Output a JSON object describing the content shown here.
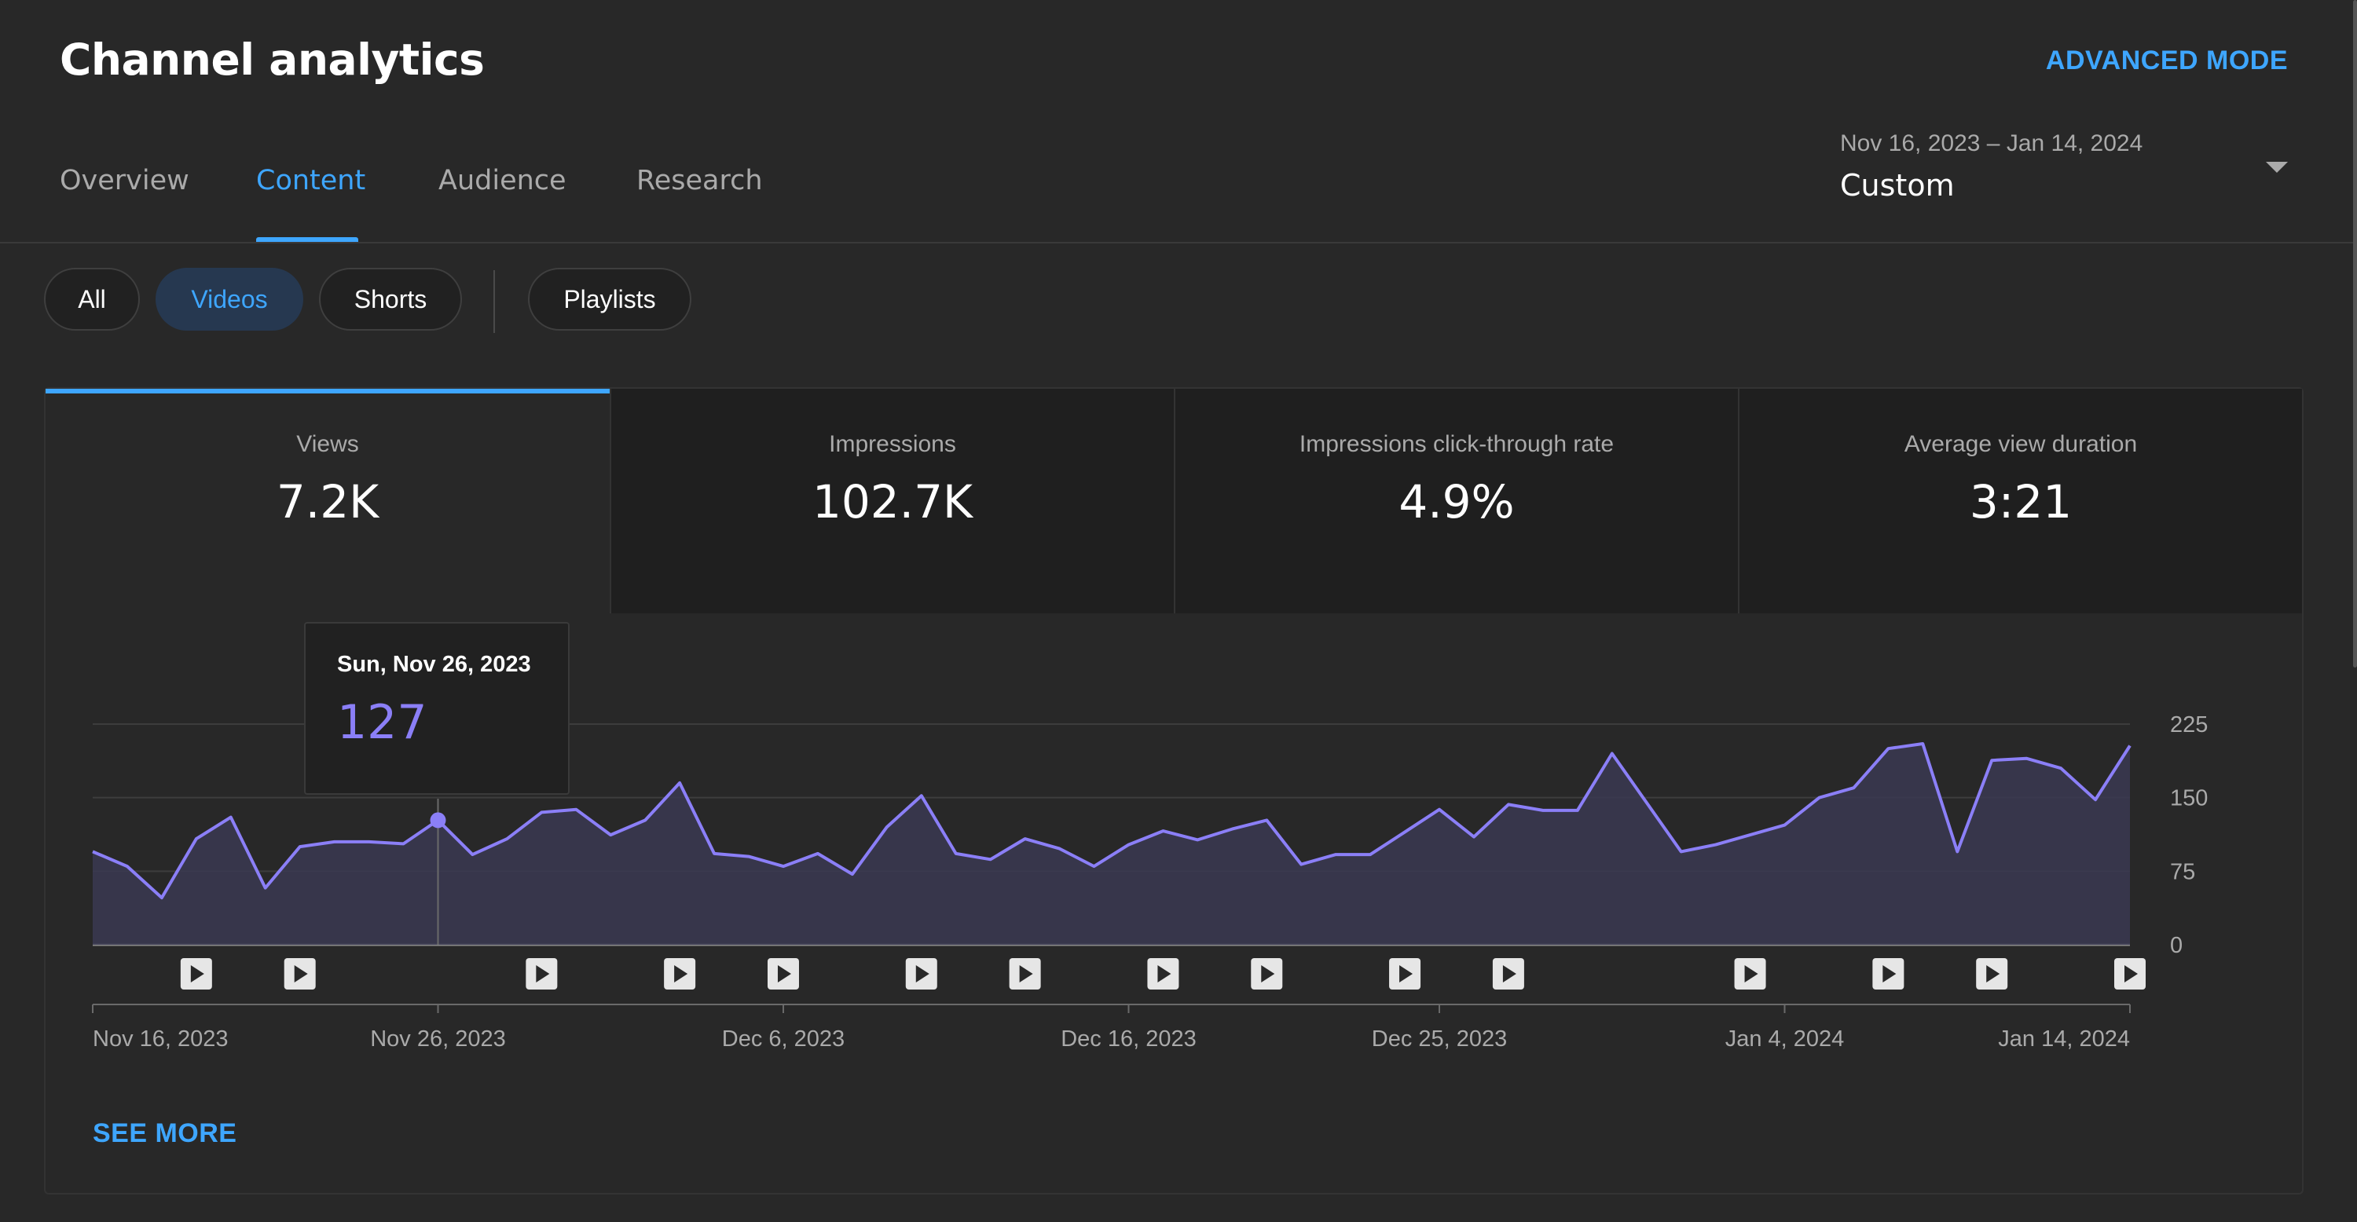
{
  "header": {
    "title": "Channel analytics",
    "advanced_mode_label": "ADVANCED MODE"
  },
  "tabs": [
    {
      "label": "Overview",
      "active": false
    },
    {
      "label": "Content",
      "active": true
    },
    {
      "label": "Audience",
      "active": false
    },
    {
      "label": "Research",
      "active": false
    }
  ],
  "date_range": {
    "range_text": "Nov 16, 2023 – Jan 14, 2024",
    "preset_label": "Custom"
  },
  "filters": {
    "chips": [
      {
        "label": "All",
        "active": false
      },
      {
        "label": "Videos",
        "active": true
      },
      {
        "label": "Shorts",
        "active": false
      },
      {
        "label": "Playlists",
        "active": false
      }
    ]
  },
  "metrics": [
    {
      "label": "Views",
      "value": "7.2K",
      "active": true
    },
    {
      "label": "Impressions",
      "value": "102.7K",
      "active": false
    },
    {
      "label": "Impressions click-through rate",
      "value": "4.9%",
      "active": false
    },
    {
      "label": "Average view duration",
      "value": "3:21",
      "active": false
    }
  ],
  "tooltip": {
    "date": "Sun, Nov 26, 2023",
    "value": "127"
  },
  "see_more_label": "SEE MORE",
  "colors": {
    "accent": "#3ea6ff",
    "series": "#8b7ff7",
    "background": "#282828"
  },
  "chart_data": {
    "type": "area",
    "x_start": "Nov 16, 2023",
    "x_end": "Jan 14, 2024",
    "xtick_labels": [
      "Nov 16, 2023",
      "Nov 26, 2023",
      "Dec 6, 2023",
      "Dec 16, 2023",
      "Dec 25, 2023",
      "Jan 4, 2024",
      "Jan 14, 2024"
    ],
    "xtick_day_index": [
      0,
      10,
      20,
      30,
      39,
      49,
      59
    ],
    "ylim": [
      0,
      225
    ],
    "yticks": [
      0,
      75,
      150,
      225
    ],
    "values": [
      95,
      80,
      48,
      108,
      130,
      58,
      100,
      105,
      105,
      103,
      127,
      92,
      108,
      135,
      138,
      112,
      127,
      165,
      93,
      90,
      80,
      93,
      72,
      120,
      152,
      93,
      87,
      108,
      98,
      80,
      102,
      116,
      107,
      118,
      127,
      82,
      92,
      92,
      115,
      138,
      110,
      143,
      137,
      137,
      195,
      145,
      95,
      102,
      112,
      122,
      150,
      160,
      200,
      205,
      95,
      188,
      190,
      180,
      148,
      203
    ],
    "highlight_index": 10,
    "video_publish_day_index": [
      3,
      6,
      13,
      17,
      20,
      24,
      27,
      31,
      34,
      38,
      41,
      48,
      52,
      55,
      59
    ],
    "grid": true
  }
}
